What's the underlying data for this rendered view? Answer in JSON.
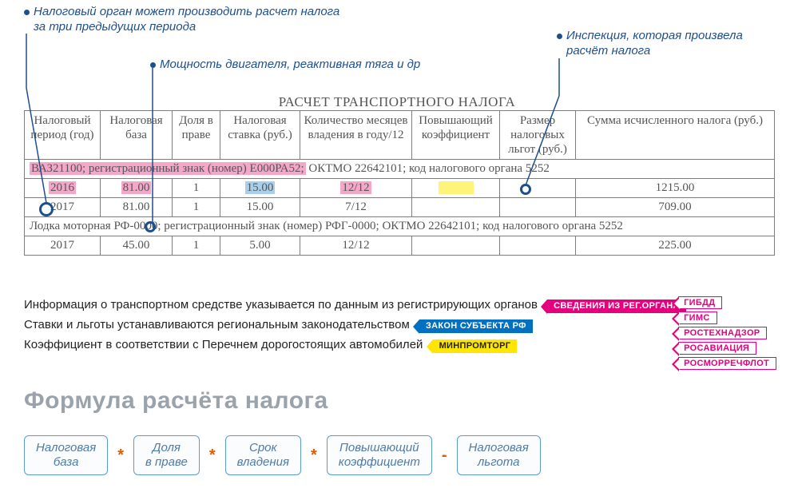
{
  "annotations": {
    "top_left_line1": "Налоговый орган может производить расчет налога",
    "top_left_line2": "за три предыдущих периода",
    "middle": "Мощность двигателя, реактивная тяга и др",
    "top_right_line1": "Инспекция, которая произвела",
    "top_right_line2": "расчёт налога"
  },
  "table": {
    "title": "РАСЧЕТ ТРАНСПОРТНОГО НАЛОГА",
    "headers": [
      "Налоговый период (год)",
      "Налоговая база",
      "Доля в праве",
      "Налоговая ставка (руб.)",
      "Количество месяцев владения в году/12",
      "Повышающий коэффициент",
      "Размер налоговых льгот (руб.)",
      "Сумма исчисленного налога (руб.)"
    ],
    "vehicle1_pink": "ВАЗ21100; регистрационный знак (номер) Е000РА52;",
    "vehicle1_rest": " ОКТМО 22642101; код налогового органа 5252",
    "row1": {
      "year": "2016",
      "base": "81.00",
      "share": "1",
      "rate": "15.00",
      "months": "12/12",
      "coef": " ",
      "total": "1215.00"
    },
    "row2": {
      "year": "2017",
      "base": "81.00",
      "share": "1",
      "rate": "15.00",
      "months": "7/12",
      "total": "709.00"
    },
    "vehicle2": "Лодка моторная РФ-0000; регистрационный знак (номер) РФГ-0000; ОКТМО 22642101; код налогового органа 5252",
    "row3": {
      "year": "2017",
      "base": "45.00",
      "share": "1",
      "rate": "5.00",
      "months": "12/12",
      "total": "225.00"
    }
  },
  "legend": {
    "line1": "Информация о транспортном средстве указывается по данным из регистрирующих органов",
    "tag1": "СВЕДЕНИЯ ИЗ РЕГ.ОРГАНА",
    "line2": "Ставки и льготы устанавливаются региональным законодательством",
    "tag2": "ЗАКОН СУБЪЕКТА РФ",
    "line3": "Коэффициент в соответствии с Перечнем дорогостоящих автомобилей",
    "tag3": "МИНПРОМТОРГ"
  },
  "reg_tags": [
    "ГИБДД",
    "ГИМС",
    "РОСТЕХНАДЗОР",
    "РОСАВИАЦИЯ",
    "РОСМОРРЕЧФЛОТ"
  ],
  "formula": {
    "title": "Формула расчёта налога",
    "boxes": [
      "Налоговая<br>база",
      "Доля<br>в праве",
      "Срок<br>владения",
      "Повышающий<br>коэффициент",
      "Налоговая<br>льгота"
    ],
    "ops": [
      "*",
      "*",
      "*",
      "-"
    ]
  },
  "colors": {
    "annotation": "#1d4f8f",
    "pink": "#f5a7c9",
    "blue_hl": "#a6d0ec",
    "yellow_hl": "#fff47a",
    "tag_pink": "#e6007e",
    "tag_blue": "#0070c0",
    "tag_yellow": "#ffe600",
    "formula_border": "#5a9bd5",
    "formula_title": "#9aa3ab"
  }
}
